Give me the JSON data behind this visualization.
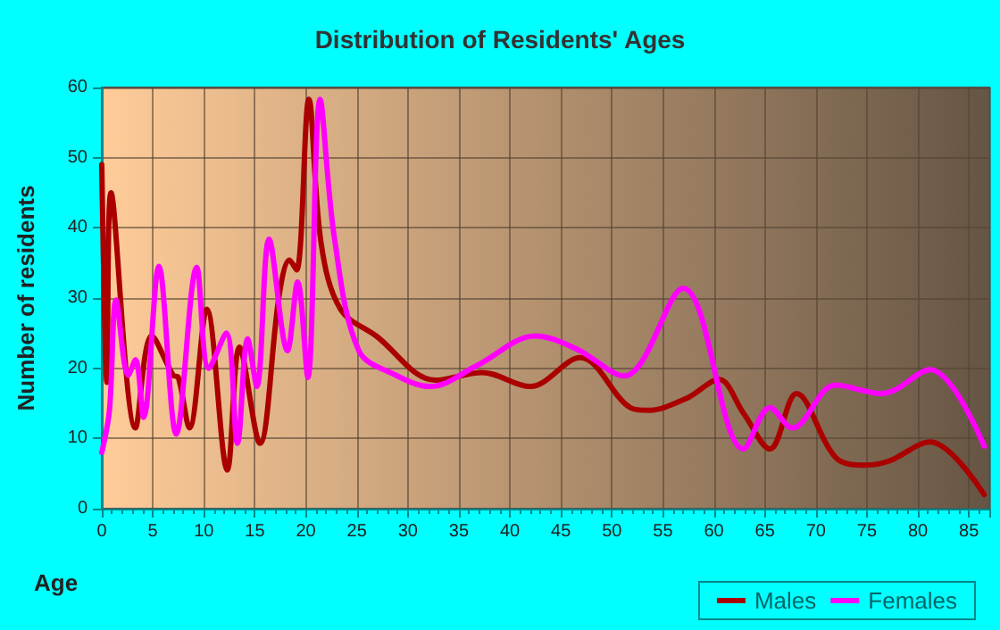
{
  "chart_data": {
    "type": "line",
    "title": "Distribution of Residents' Ages",
    "xlabel": "Age",
    "ylabel": "Number of residents",
    "xlim": [
      0,
      87
    ],
    "xticks": [
      0,
      5,
      10,
      15,
      20,
      25,
      30,
      35,
      40,
      45,
      50,
      55,
      60,
      65,
      70,
      75,
      80,
      85
    ],
    "ylim": [
      0,
      60
    ],
    "yticks": [
      0,
      10,
      20,
      30,
      40,
      50,
      60
    ],
    "grid": true,
    "legend": "bottom right",
    "marker": "none",
    "line_style": "solid",
    "series": [
      {
        "name": "Males",
        "color": "#aa0000",
        "x": [
          0,
          0.5,
          0.9,
          3.3,
          4.9,
          7,
          7.5,
          8.6,
          10.3,
          12.3,
          13.5,
          15.5,
          17.4,
          18.4,
          19.1,
          20.3,
          21.5,
          23.4,
          26.9,
          32.7,
          37.3,
          42,
          46.9,
          51.8,
          53.5,
          57.3,
          60.5,
          62.9,
          65.5,
          68.1,
          72,
          74.9,
          77.2,
          81.2,
          86.5
        ],
        "values": [
          49,
          18,
          45,
          11.5,
          24.6,
          19,
          18.7,
          11.5,
          28.4,
          5.5,
          23,
          9.3,
          30.5,
          35.4,
          34,
          58.3,
          37.8,
          28.4,
          24.6,
          18.3,
          19.4,
          17.4,
          21.5,
          14.4,
          14,
          15.7,
          18.4,
          13.6,
          8.5,
          16.4,
          7.2,
          6.2,
          6.8,
          9.5,
          2
        ]
      },
      {
        "name": "Females",
        "color": "#ff00ff",
        "x": [
          0,
          0.75,
          1.4,
          2.6,
          3.3,
          4.1,
          5.6,
          7.3,
          9.3,
          10.5,
          12.2,
          13.3,
          14.3,
          15.2,
          16.4,
          18.2,
          19.2,
          20.2,
          21.4,
          22.8,
          25.2,
          28.7,
          32.2,
          36.8,
          42.5,
          46.6,
          51.2,
          57,
          62.9,
          65.5,
          67.7,
          71.9,
          76.5,
          81.2,
          86.5
        ],
        "values": [
          8,
          14,
          29.7,
          19,
          21.2,
          13,
          34.5,
          10.6,
          34.4,
          20,
          25,
          9.3,
          24.2,
          17.4,
          38.4,
          22.5,
          32.3,
          18.7,
          58.3,
          38.6,
          22.5,
          19.1,
          17.4,
          20.4,
          24.6,
          22.7,
          18.9,
          31.4,
          8.5,
          14.4,
          11.5,
          17.6,
          16.4,
          19.8,
          8.9
        ]
      }
    ]
  }
}
